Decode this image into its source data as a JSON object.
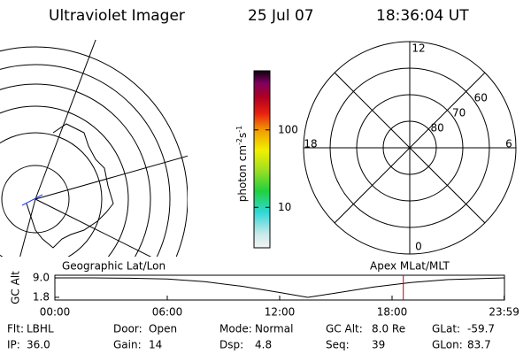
{
  "header": {
    "title": "Ultraviolet Imager",
    "date": "25 Jul 07",
    "time": "18:36:04 UT"
  },
  "colorbar": {
    "label": [
      "photon cm",
      "-2",
      "s",
      "-1"
    ],
    "log": true,
    "range": [
      3,
      580
    ],
    "ticks": [
      10,
      100
    ]
  },
  "geo_plot": {
    "title": "Geographic Lat/Lon"
  },
  "polar_plot": {
    "title": "Apex MLat/MLT",
    "mlt_ticks": [
      12,
      6,
      0,
      18
    ],
    "lat_ticks": [
      80,
      70,
      60
    ],
    "lat_lim": [
      90,
      50
    ]
  },
  "timeline": {
    "ylabel": "GC Alt",
    "ylim": [
      0.8,
      10
    ],
    "yticks": [
      {
        "value": 9,
        "label": "9.0"
      },
      {
        "value": 1.8,
        "label": "1.8"
      }
    ],
    "xlim": [
      0,
      24
    ],
    "xticks": [
      {
        "value": 0,
        "label": "00:00"
      },
      {
        "value": 6,
        "label": "06:00"
      },
      {
        "value": 12,
        "label": "12:00"
      },
      {
        "value": 18,
        "label": "18:00"
      },
      {
        "value": 23.983,
        "label": "23:59"
      }
    ],
    "x": [
      0,
      2,
      4,
      6,
      8,
      10,
      12,
      13.5,
      15,
      17,
      19,
      21,
      23.983
    ],
    "values": [
      9.0,
      9.0,
      8.9,
      8.6,
      7.6,
      5.9,
      3.6,
      1.8,
      3.4,
      5.6,
      7.3,
      8.4,
      9.0
    ],
    "current": 18.601,
    "current_color": "#c00000"
  },
  "footer": [
    {
      "label": "Flt:",
      "value": "LBHL"
    },
    {
      "label": "IP:",
      "value": "36.0"
    },
    {
      "label": "Door:",
      "value": "Open"
    },
    {
      "label": "Gain:",
      "value": "14"
    },
    {
      "label": "Mode:",
      "value": "Normal"
    },
    {
      "label": "Dsp:",
      "value": "4.8"
    },
    {
      "label": "GC Alt:",
      "value": "8.0 Re"
    },
    {
      "label": "Seq:",
      "value": "39"
    },
    {
      "label": "GLat:",
      "value": "-59.7"
    },
    {
      "label": "GLon:",
      "value": "83.7"
    }
  ]
}
